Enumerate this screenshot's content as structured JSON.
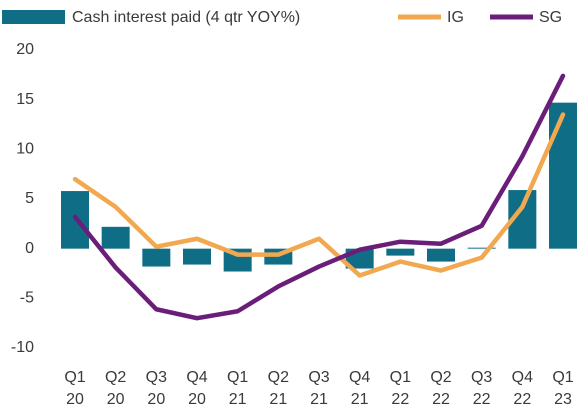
{
  "chart_data": {
    "type": "bar-line",
    "categories": [
      [
        "Q1",
        "20"
      ],
      [
        "Q2",
        "20"
      ],
      [
        "Q3",
        "20"
      ],
      [
        "Q4",
        "20"
      ],
      [
        "Q1",
        "21"
      ],
      [
        "Q2",
        "21"
      ],
      [
        "Q3",
        "21"
      ],
      [
        "Q4",
        "21"
      ],
      [
        "Q1",
        "22"
      ],
      [
        "Q2",
        "22"
      ],
      [
        "Q3",
        "22"
      ],
      [
        "Q4",
        "22"
      ],
      [
        "Q1",
        "23"
      ]
    ],
    "series": [
      {
        "name": "Cash interest paid (4 qtr YOY%)",
        "type": "bar",
        "color": "#0f6e86",
        "values": [
          5.8,
          2.2,
          -1.8,
          -1.6,
          -2.3,
          -1.6,
          0,
          -2.0,
          -0.7,
          -1.3,
          0.1,
          5.9,
          14.7
        ]
      },
      {
        "name": "IG",
        "type": "line",
        "color": "#f1a84f",
        "values": [
          7.0,
          4.2,
          0.2,
          1.0,
          -0.6,
          -0.6,
          1.0,
          -2.7,
          -1.3,
          -2.2,
          -0.9,
          4.2,
          13.5
        ]
      },
      {
        "name": "SG",
        "type": "line",
        "color": "#6a1e7a",
        "values": [
          3.2,
          -1.9,
          -6.1,
          -7.0,
          -6.3,
          -3.8,
          -1.8,
          -0.1,
          0.7,
          0.5,
          2.3,
          9.3,
          17.4
        ]
      }
    ],
    "ylim": [
      -10,
      20
    ],
    "yticks": [
      -10,
      -5,
      0,
      5,
      10,
      15,
      20
    ],
    "grid": false,
    "legend": "top"
  }
}
